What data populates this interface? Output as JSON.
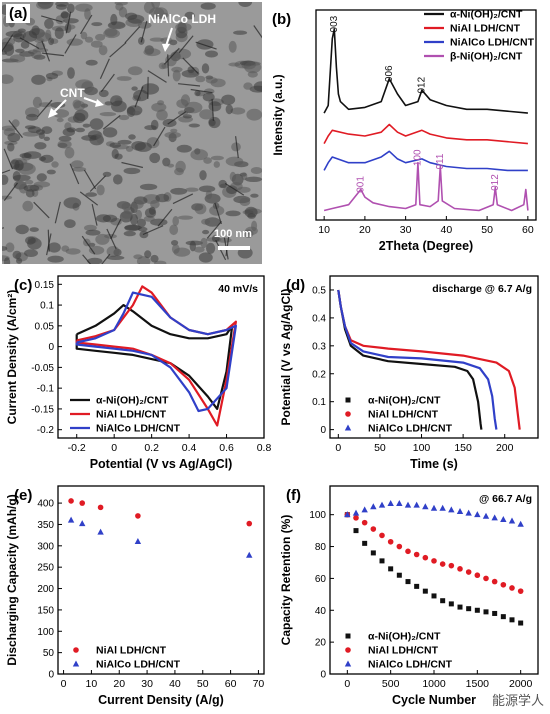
{
  "panels": {
    "a": {
      "letter": "(a)",
      "labels": {
        "ldh": "NiAlCo LDH",
        "cnt": "CNT",
        "scale": "100 nm"
      }
    }
  },
  "watermark": "能源学人",
  "colors": {
    "black": "#111111",
    "red": "#e01b24",
    "blue": "#3040c8",
    "magenta": "#b050b0",
    "axis": "#000000"
  },
  "chart_data": [
    {
      "id": "b",
      "letter": "(b)",
      "type": "line",
      "xlabel": "2Theta (Degree)",
      "ylabel": "Intensity (a.u.)",
      "xlim": [
        8,
        62
      ],
      "xticks": [
        10,
        20,
        30,
        40,
        50,
        60
      ],
      "legend_position": "top-right",
      "legend": [
        "α-Ni(OH)₂/CNT",
        "NiAl LDH/CNT",
        "NiAlCo LDH/CNT",
        "β-Ni(OH)₂/CNT"
      ],
      "series": [
        {
          "name": "α-Ni(OH)₂/CNT",
          "color": "black",
          "x": [
            10,
            11,
            12,
            12.5,
            13,
            13.5,
            14,
            16,
            20,
            24,
            26,
            28,
            30,
            33,
            34,
            36,
            40,
            45,
            50,
            55,
            60
          ],
          "y": [
            0.56,
            0.6,
            0.95,
            1.0,
            0.8,
            0.66,
            0.62,
            0.58,
            0.59,
            0.62,
            0.74,
            0.66,
            0.6,
            0.62,
            0.68,
            0.63,
            0.6,
            0.58,
            0.58,
            0.57,
            0.56
          ]
        },
        {
          "name": "NiAl LDH/CNT",
          "color": "red",
          "x": [
            10,
            11,
            12,
            16,
            20,
            24,
            26,
            28,
            30,
            34,
            36,
            40,
            45,
            50,
            55,
            60
          ],
          "y": [
            0.4,
            0.44,
            0.47,
            0.45,
            0.44,
            0.46,
            0.5,
            0.46,
            0.44,
            0.47,
            0.45,
            0.43,
            0.42,
            0.42,
            0.41,
            0.4
          ]
        },
        {
          "name": "NiAlCo LDH/CNT",
          "color": "blue",
          "x": [
            10,
            11,
            12,
            16,
            20,
            24,
            26,
            28,
            30,
            34,
            36,
            40,
            45,
            50,
            55,
            60
          ],
          "y": [
            0.26,
            0.3,
            0.33,
            0.3,
            0.3,
            0.33,
            0.36,
            0.32,
            0.3,
            0.32,
            0.3,
            0.28,
            0.27,
            0.27,
            0.26,
            0.26
          ]
        },
        {
          "name": "β-Ni(OH)₂/CNT",
          "color": "magenta",
          "x": [
            10,
            12,
            16,
            19,
            20,
            22,
            26,
            30,
            32.5,
            33,
            33.5,
            36,
            38,
            38.5,
            39,
            42,
            48,
            51.5,
            52,
            52.5,
            56,
            59,
            59.5,
            60
          ],
          "y": [
            0.05,
            0.06,
            0.08,
            0.16,
            0.12,
            0.09,
            0.07,
            0.06,
            0.08,
            0.3,
            0.08,
            0.07,
            0.1,
            0.28,
            0.1,
            0.06,
            0.05,
            0.08,
            0.17,
            0.08,
            0.05,
            0.08,
            0.16,
            0.05
          ]
        }
      ],
      "annotations": [
        {
          "text": "003",
          "x": 12.5,
          "y": 1.0,
          "color": "black"
        },
        {
          "text": "006",
          "x": 26,
          "y": 0.74,
          "color": "black"
        },
        {
          "text": "012",
          "x": 34,
          "y": 0.68,
          "color": "black"
        },
        {
          "text": "001",
          "x": 19,
          "y": 0.16,
          "color": "magenta"
        },
        {
          "text": "100",
          "x": 33,
          "y": 0.3,
          "color": "magenta"
        },
        {
          "text": "011",
          "x": 38.5,
          "y": 0.28,
          "color": "magenta"
        },
        {
          "text": "012",
          "x": 52,
          "y": 0.17,
          "color": "magenta"
        }
      ]
    },
    {
      "id": "c",
      "letter": "(c)",
      "type": "line",
      "xlabel": "Potential (V vs Ag/AgCl)",
      "ylabel": "Current Density (A/cm²)",
      "xlim": [
        -0.3,
        0.8
      ],
      "ylim": [
        -0.22,
        0.17
      ],
      "xticks": [
        -0.2,
        0.0,
        0.2,
        0.4,
        0.6,
        0.8
      ],
      "yticks": [
        -0.2,
        -0.15,
        -0.1,
        -0.05,
        0.0,
        0.05,
        0.1,
        0.15
      ],
      "tag": "40 mV/s",
      "legend_position": "bottom-left",
      "legend": [
        "α-Ni(OH)₂/CNT",
        "NiAl LDH/CNT",
        "NiAlCo LDH/CNT"
      ],
      "series": [
        {
          "name": "α-Ni(OH)₂/CNT",
          "color": "black",
          "x": [
            -0.2,
            -0.1,
            0.0,
            0.05,
            0.1,
            0.2,
            0.3,
            0.4,
            0.5,
            0.6,
            0.63,
            0.6,
            0.55,
            0.5,
            0.4,
            0.3,
            0.2,
            0.1,
            0.0,
            -0.1,
            -0.2,
            -0.2
          ],
          "y": [
            0.03,
            0.05,
            0.08,
            0.1,
            0.085,
            0.05,
            0.03,
            0.02,
            0.02,
            0.03,
            0.05,
            -0.06,
            -0.15,
            -0.12,
            -0.07,
            -0.04,
            -0.03,
            -0.02,
            -0.015,
            -0.01,
            -0.005,
            0.03
          ]
        },
        {
          "name": "NiAl LDH/CNT",
          "color": "red",
          "x": [
            -0.2,
            -0.1,
            0.0,
            0.1,
            0.15,
            0.2,
            0.3,
            0.4,
            0.5,
            0.6,
            0.65,
            0.6,
            0.55,
            0.5,
            0.4,
            0.3,
            0.2,
            0.1,
            0.0,
            -0.1,
            -0.2,
            -0.2
          ],
          "y": [
            0.015,
            0.025,
            0.04,
            0.1,
            0.145,
            0.13,
            0.07,
            0.04,
            0.03,
            0.04,
            0.06,
            -0.08,
            -0.19,
            -0.15,
            -0.08,
            -0.04,
            -0.02,
            -0.005,
            0.0,
            0.005,
            0.01,
            0.015
          ]
        },
        {
          "name": "NiAlCo LDH/CNT",
          "color": "blue",
          "x": [
            -0.2,
            -0.1,
            0.0,
            0.05,
            0.1,
            0.2,
            0.3,
            0.4,
            0.5,
            0.6,
            0.65,
            0.6,
            0.5,
            0.45,
            0.4,
            0.3,
            0.2,
            0.1,
            0.0,
            -0.1,
            -0.2,
            -0.2
          ],
          "y": [
            0.01,
            0.02,
            0.04,
            0.08,
            0.13,
            0.12,
            0.07,
            0.04,
            0.03,
            0.04,
            0.05,
            -0.1,
            -0.15,
            -0.155,
            -0.11,
            -0.05,
            -0.02,
            -0.01,
            -0.005,
            0.0,
            0.005,
            0.01
          ]
        }
      ]
    },
    {
      "id": "d",
      "letter": "(d)",
      "type": "line",
      "xlabel": "Time (s)",
      "ylabel": "Potential (V vs Ag/AgCl)",
      "xlim": [
        -10,
        240
      ],
      "ylim": [
        -0.03,
        0.55
      ],
      "xticks": [
        0,
        50,
        100,
        150,
        200
      ],
      "yticks": [
        0.0,
        0.1,
        0.2,
        0.3,
        0.4,
        0.5
      ],
      "tag": "discharge @ 6.7 A/g",
      "legend_position": "bottom-left",
      "legend": [
        "α-Ni(OH)₂/CNT",
        "NiAl LDH/CNT",
        "NiAlCo LDH/CNT"
      ],
      "series": [
        {
          "name": "α-Ni(OH)₂/CNT",
          "color": "black",
          "x": [
            0,
            3,
            8,
            15,
            30,
            60,
            100,
            140,
            155,
            162,
            168,
            171,
            172
          ],
          "y": [
            0.5,
            0.44,
            0.36,
            0.3,
            0.265,
            0.245,
            0.235,
            0.225,
            0.21,
            0.18,
            0.1,
            0.02,
            0.0
          ]
        },
        {
          "name": "NiAl LDH/CNT",
          "color": "red",
          "x": [
            0,
            3,
            8,
            15,
            30,
            60,
            100,
            150,
            190,
            205,
            212,
            216,
            218
          ],
          "y": [
            0.5,
            0.44,
            0.37,
            0.32,
            0.3,
            0.29,
            0.28,
            0.265,
            0.24,
            0.21,
            0.15,
            0.05,
            0.0
          ]
        },
        {
          "name": "NiAlCo LDH/CNT",
          "color": "blue",
          "x": [
            0,
            3,
            8,
            15,
            30,
            60,
            100,
            150,
            170,
            180,
            185,
            188,
            190
          ],
          "y": [
            0.5,
            0.44,
            0.37,
            0.31,
            0.28,
            0.26,
            0.255,
            0.24,
            0.22,
            0.18,
            0.12,
            0.04,
            0.0
          ]
        }
      ]
    },
    {
      "id": "e",
      "letter": "(e)",
      "type": "scatter",
      "xlabel": "Current Density (A/g)",
      "ylabel": "Discharging Capacity (mAh/g)",
      "xlim": [
        -2,
        72
      ],
      "ylim": [
        0,
        440
      ],
      "xticks": [
        0,
        10,
        20,
        30,
        40,
        50,
        60,
        70
      ],
      "yticks": [
        0,
        50,
        100,
        150,
        200,
        250,
        300,
        350,
        400
      ],
      "legend_position": "bottom-left",
      "legend": [
        "NiAl LDH/CNT",
        "NiAlCo LDH/CNT"
      ],
      "series": [
        {
          "name": "NiAl LDH/CNT",
          "color": "red",
          "marker": "circle",
          "x": [
            2.7,
            6.7,
            13.3,
            26.7,
            66.7
          ],
          "y": [
            405,
            400,
            390,
            370,
            352
          ]
        },
        {
          "name": "NiAlCo LDH/CNT",
          "color": "blue",
          "marker": "triangle",
          "x": [
            2.7,
            6.7,
            13.3,
            26.7,
            66.7
          ],
          "y": [
            360,
            352,
            332,
            310,
            278
          ]
        }
      ]
    },
    {
      "id": "f",
      "letter": "(f)",
      "type": "scatter",
      "xlabel": "Cycle Number",
      "ylabel": "Capacity Retention (%)",
      "xlim": [
        -200,
        2200
      ],
      "ylim": [
        0,
        118
      ],
      "xticks": [
        0,
        500,
        1000,
        1500,
        2000
      ],
      "yticks": [
        0,
        20,
        40,
        60,
        80,
        100
      ],
      "tag": "@ 66.7 A/g",
      "legend_position": "bottom-left",
      "legend": [
        "α-Ni(OH)₂/CNT",
        "NiAl LDH/CNT",
        "NiAlCo LDH/CNT"
      ],
      "series": [
        {
          "name": "α-Ni(OH)₂/CNT",
          "color": "black",
          "marker": "square",
          "x": [
            0,
            100,
            200,
            300,
            400,
            500,
            600,
            700,
            800,
            900,
            1000,
            1100,
            1200,
            1300,
            1400,
            1500,
            1600,
            1700,
            1800,
            1900,
            2000
          ],
          "y": [
            100,
            90,
            82,
            76,
            71,
            66,
            62,
            58,
            55,
            52,
            49,
            46,
            44,
            42,
            41,
            40,
            39,
            38,
            36,
            34,
            32
          ]
        },
        {
          "name": "NiAl LDH/CNT",
          "color": "red",
          "marker": "circle",
          "x": [
            0,
            100,
            200,
            300,
            400,
            500,
            600,
            700,
            800,
            900,
            1000,
            1100,
            1200,
            1300,
            1400,
            1500,
            1600,
            1700,
            1800,
            1900,
            2000
          ],
          "y": [
            100,
            98,
            95,
            91,
            87,
            83,
            80,
            77,
            75,
            73,
            71,
            69,
            68,
            66,
            64,
            62,
            60,
            58,
            56,
            54,
            52
          ]
        },
        {
          "name": "NiAlCo LDH/CNT",
          "color": "blue",
          "marker": "triangle",
          "x": [
            0,
            100,
            200,
            300,
            400,
            500,
            600,
            700,
            800,
            900,
            1000,
            1100,
            1200,
            1300,
            1400,
            1500,
            1600,
            1700,
            1800,
            1900,
            2000
          ],
          "y": [
            100,
            101,
            103,
            105,
            106,
            107,
            107,
            106,
            106,
            105,
            104,
            104,
            103,
            102,
            101,
            100,
            99,
            98,
            97,
            96,
            94
          ]
        }
      ]
    }
  ]
}
